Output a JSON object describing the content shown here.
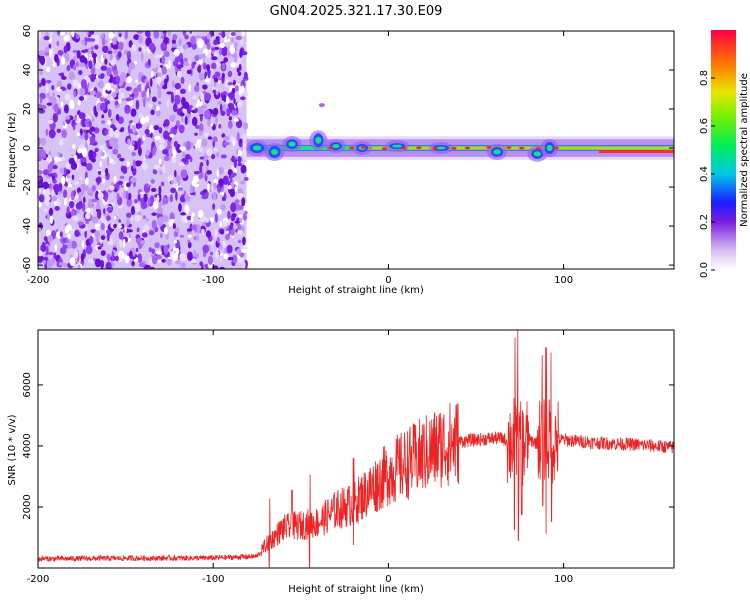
{
  "title": "GN04.2025.321.17.30.E09",
  "colors": {
    "snr_line": "#ee2222",
    "axes": "#000000"
  },
  "chart_data": [
    {
      "type": "heatmap",
      "name": "spectrogram",
      "xlabel": "Height of straight line (km)",
      "ylabel": "Frequency (Hz)",
      "xlim": [
        -200,
        163
      ],
      "ylim": [
        -62,
        60
      ],
      "xticks": [
        "-200",
        "-100",
        "0",
        "100"
      ],
      "xtick_values": [
        -200,
        -100,
        0,
        100
      ],
      "yticks": [
        "60",
        "40",
        "20",
        "0",
        "-20",
        "-40",
        "-60"
      ],
      "ytick_values": [
        60,
        40,
        20,
        0,
        -20,
        -40,
        -60
      ],
      "noise_region_x": [
        -200,
        -81
      ],
      "signal_band_hz": [
        -4,
        4
      ],
      "colorbar": {
        "label": "Normalized spectral amplitude",
        "range": [
          0,
          1
        ],
        "ticks": [
          "0.0",
          "0.2",
          "0.4",
          "0.6",
          "0.8"
        ],
        "tick_values": [
          0.0,
          0.2,
          0.4,
          0.6,
          0.8
        ]
      }
    },
    {
      "type": "line",
      "name": "snr",
      "xlabel": "Height of straight line (km)",
      "ylabel": "SNR (10 * v/v)",
      "xlim": [
        -200,
        163
      ],
      "ylim": [
        0,
        7800
      ],
      "xticks": [
        "-200",
        "-100",
        "0",
        "100"
      ],
      "xtick_values": [
        -200,
        -100,
        0,
        100
      ],
      "yticks": [
        "2000",
        "4000",
        "6000"
      ],
      "ytick_values": [
        2000,
        4000,
        6000
      ],
      "series": [
        {
          "name": "SNR",
          "x": [
            -200,
            -150,
            -100,
            -75,
            -70,
            -60,
            -50,
            -40,
            -30,
            -20,
            -10,
            0,
            10,
            20,
            30,
            40,
            50,
            60,
            65,
            70,
            73,
            76,
            80,
            85,
            88,
            90,
            92,
            94,
            96,
            100,
            120,
            140,
            163
          ],
          "values": [
            300,
            320,
            330,
            380,
            750,
            1300,
            1400,
            1500,
            1900,
            2100,
            2600,
            3100,
            3400,
            3700,
            4000,
            4150,
            4200,
            4250,
            4250,
            4100,
            4300,
            3900,
            4200,
            4100,
            4400,
            4000,
            4200,
            4100,
            4200,
            4200,
            4100,
            4050,
            3950
          ]
        }
      ]
    }
  ]
}
